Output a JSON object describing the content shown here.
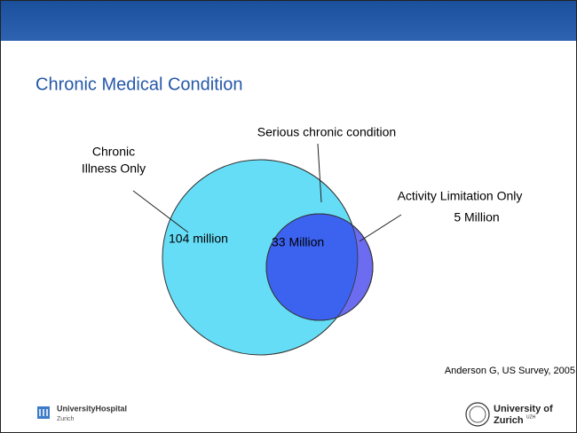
{
  "title": "Chronic Medical Condition",
  "venn": {
    "chronic_illness_label": [
      "Chronic",
      "Illness Only"
    ],
    "serious_label": "Serious chronic condition",
    "activity_label": [
      "Activity Limitation Only",
      "5 Million"
    ],
    "chronic_value": "104 million",
    "serious_value": "33 Million"
  },
  "source": "Anderson G, US Survey, 2005",
  "footer": {
    "left_logo": [
      "UniversityHospital",
      "Zurich"
    ],
    "right_logo": [
      "University of",
      "Zurich",
      "UZH"
    ]
  }
}
